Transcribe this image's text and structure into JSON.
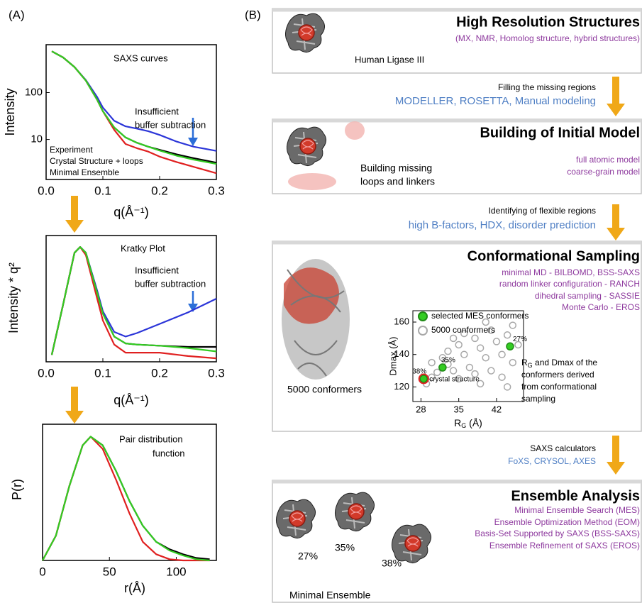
{
  "panel_a_label": "(A)",
  "chart_data": [
    {
      "type": "line",
      "title": "SAXS curves",
      "xlabel": "q(Å⁻¹)",
      "ylabel": "Intensity",
      "log_y": true,
      "xlim": [
        0,
        0.3
      ],
      "xticks": [
        {
          "value": 0,
          "label": "0.0"
        },
        0.1,
        0.2,
        0.3
      ],
      "ylim": [
        1.4,
        1050
      ],
      "yticks": [
        10,
        100
      ],
      "annotation_lines": [
        "Insufficient",
        "buffer subtraction"
      ],
      "x": [
        0.01,
        0.03,
        0.05,
        0.07,
        0.09,
        0.1,
        0.12,
        0.14,
        0.16,
        0.18,
        0.2,
        0.23,
        0.26,
        0.3
      ],
      "series": [
        {
          "color": "#2b35d8",
          "values": [
            760,
            560,
            350,
            185,
            80,
            48,
            25,
            19,
            17,
            15,
            12.5,
            9,
            7,
            5.7
          ]
        },
        {
          "name": "Experiment",
          "color": "#000000",
          "values": [
            760,
            560,
            350,
            180,
            70,
            40,
            18,
            11,
            8.5,
            7,
            6,
            4.8,
            4,
            3.2
          ]
        },
        {
          "name": "Crystal Structure + loops",
          "color": "#e02020",
          "values": [
            760,
            560,
            350,
            180,
            70,
            40,
            16,
            8,
            6.5,
            5.5,
            4.3,
            3.3,
            2.6,
            1.9
          ]
        },
        {
          "name": "Minimal Ensemble",
          "color": "#33cc22",
          "values": [
            760,
            560,
            350,
            180,
            70,
            40,
            18,
            11,
            8.5,
            7,
            5.8,
            4.5,
            3.7,
            3
          ]
        }
      ]
    },
    {
      "type": "line",
      "title": "Kratky Plot",
      "xlabel": "q(Å⁻¹)",
      "ylabel": "Intensity * q²",
      "xlim": [
        0,
        0.3
      ],
      "xticks": [
        {
          "value": 0,
          "label": "0.0"
        },
        0.1,
        0.2,
        0.3
      ],
      "ylim": [
        0,
        1.1
      ],
      "annotation_lines": [
        "Insufficient",
        "buffer subtraction"
      ],
      "x": [
        0.01,
        0.03,
        0.05,
        0.06,
        0.07,
        0.09,
        0.1,
        0.12,
        0.14,
        0.16,
        0.2,
        0.25,
        0.3
      ],
      "series": [
        {
          "color": "#2b35d8",
          "values": [
            0.06,
            0.5,
            0.95,
            1.0,
            0.95,
            0.62,
            0.44,
            0.26,
            0.22,
            0.25,
            0.33,
            0.43,
            0.55
          ]
        },
        {
          "color": "#000000",
          "values": [
            0.06,
            0.5,
            0.95,
            1.0,
            0.95,
            0.6,
            0.42,
            0.22,
            0.16,
            0.15,
            0.14,
            0.13,
            0.13
          ]
        },
        {
          "color": "#e02020",
          "values": [
            0.06,
            0.5,
            0.95,
            1.0,
            0.93,
            0.55,
            0.36,
            0.15,
            0.08,
            0.08,
            0.08,
            0.05,
            0.03
          ]
        },
        {
          "color": "#33cc22",
          "values": [
            0.06,
            0.5,
            0.95,
            1.0,
            0.95,
            0.6,
            0.42,
            0.22,
            0.16,
            0.15,
            0.14,
            0.12,
            0.09
          ]
        }
      ]
    },
    {
      "type": "line",
      "title": "Pair distribution",
      "title_line2": "function",
      "xlabel": "r(Å)",
      "ylabel": "P(r)",
      "xlim": [
        0,
        130
      ],
      "xticks": [
        0,
        50,
        100
      ],
      "ylim": [
        0,
        1.1
      ],
      "x": [
        0,
        10,
        20,
        30,
        36,
        45,
        55,
        65,
        75,
        85,
        95,
        105,
        115,
        125
      ],
      "series": [
        {
          "color": "#000000",
          "values": [
            0,
            0.2,
            0.6,
            0.93,
            1.0,
            0.93,
            0.72,
            0.48,
            0.28,
            0.15,
            0.09,
            0.05,
            0.02,
            0.01
          ]
        },
        {
          "color": "#e02020",
          "values": [
            0,
            0.2,
            0.6,
            0.93,
            1.0,
            0.9,
            0.65,
            0.38,
            0.15,
            0.05,
            0.01,
            0,
            0,
            0
          ]
        },
        {
          "color": "#33cc22",
          "values": [
            0,
            0.2,
            0.6,
            0.93,
            1.0,
            0.93,
            0.72,
            0.48,
            0.28,
            0.15,
            0.08,
            0.04,
            0.01,
            0
          ]
        }
      ]
    },
    {
      "type": "scatter",
      "xlabel": {
        "text": "R",
        "sub": "G",
        "rest": " (Å)"
      },
      "ylabel": "Dmax (Å)",
      "xlim": [
        26.5,
        47
      ],
      "xticks": [
        28,
        35,
        42
      ],
      "ylim": [
        111,
        167
      ],
      "yticks": [
        120,
        140,
        160
      ],
      "series": [
        {
          "name": "selected MES conformers",
          "color": "#33cc22",
          "x": [
            44.5,
            32,
            28.5
          ],
          "values": [
            145,
            132,
            125
          ],
          "point_labels": [
            "27%",
            "35%",
            "38%"
          ]
        },
        {
          "name": "5000 conformers",
          "color": "#a8a8a8",
          "x": [
            29,
            30,
            31,
            30,
            32,
            33,
            34,
            33,
            35,
            36,
            35,
            37,
            38,
            39,
            38,
            40,
            41,
            42,
            41,
            43,
            44,
            45,
            43,
            46,
            45,
            39,
            36,
            44,
            40,
            34
          ],
          "values": [
            122,
            126,
            129,
            135,
            138,
            134,
            130,
            142,
            146,
            140,
            125,
            132,
            150,
            144,
            128,
            138,
            155,
            148,
            130,
            140,
            152,
            158,
            126,
            146,
            135,
            122,
            153,
            120,
            160,
            150
          ]
        }
      ],
      "crystal_structure": {
        "label": "crystal structure",
        "x": 28.5,
        "y": 125,
        "color": "#e02020"
      },
      "annotation_first": {
        "text": "R",
        "sub": "G",
        "rest": " and Dmax of the"
      },
      "annotation_lines": [
        "conformers derived",
        "from conformational",
        "sampling"
      ]
    }
  ],
  "diagram": {
    "label": "(B)",
    "stages": [
      {
        "title": "High Resolution Structures",
        "lines": [
          "(MX, NMR, Homolog structure, hybrid structures)"
        ],
        "notes": [
          "Human Ligase III"
        ]
      },
      {
        "title": "Building of Initial Model",
        "lines": [
          "full atomic model",
          "coarse-grain model"
        ],
        "notes": [
          "Building missing",
          "loops and linkers"
        ]
      },
      {
        "title": "Conformational Sampling",
        "lines": [
          "minimal MD - BILBOMD, BSS-SAXS",
          "random linker configuration - RANCH",
          "dihedral sampling - SASSIE",
          "Monte Carlo - EROS"
        ],
        "notes": [
          "5000 conformers"
        ]
      },
      {
        "title": "Ensemble Analysis",
        "lines": [
          "Minimal Ensemble Search (MES)",
          "Ensemble Optimization Method (EOM)",
          "Basis-Set Supported by SAXS (BSS-SAXS)",
          "Ensemble Refinement of SAXS (EROS)"
        ],
        "notes": [
          "27%",
          "35%",
          "38%",
          "Minimal Ensemble"
        ]
      }
    ],
    "transitions": [
      {
        "caption": "Filling the missing regions",
        "tools": "MODELLER, ROSETTA, Manual modeling"
      },
      {
        "caption": "Identifying of flexible regions",
        "tools": "high B-factors, HDX, disorder prediction"
      },
      {
        "caption": "SAXS calculators",
        "tools": "FoXS, CRYSOL, AXES"
      }
    ]
  }
}
